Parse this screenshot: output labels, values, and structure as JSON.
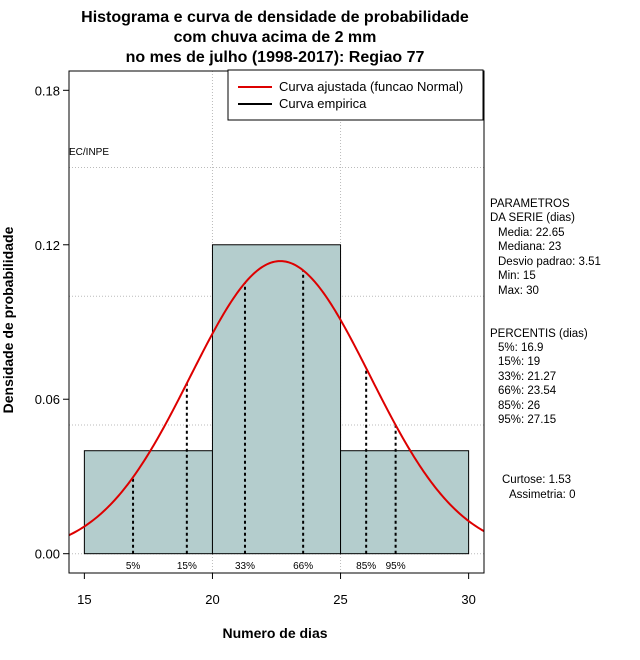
{
  "chart_data": {
    "type": "bar",
    "title_lines": [
      "Histograma e curva de densidade de probabilidade",
      "com chuva acima de 2 mm",
      "no mes de julho (1998-2017): Regiao 77"
    ],
    "xlabel": "Numero de dias",
    "ylabel": "Densidade de probabilidade",
    "xlim": [
      14.4,
      30.6
    ],
    "ylim": [
      -0.0075,
      0.1875
    ],
    "x_ticks": [
      15,
      20,
      25,
      30
    ],
    "y_ticks": [
      0.0,
      0.06,
      0.12,
      0.18
    ],
    "y_tick_labels": [
      "0.00",
      "0.06",
      "0.12",
      "0.18"
    ],
    "grid_x": [
      20,
      25
    ],
    "grid_y": [
      0.05,
      0.1,
      0.15
    ],
    "bins": [
      {
        "start": 15,
        "end": 20,
        "density": 0.04
      },
      {
        "start": 20,
        "end": 25,
        "density": 0.12
      },
      {
        "start": 25,
        "end": 30,
        "density": 0.04
      }
    ],
    "bar_color": "#b4cdcd",
    "normal_curve": {
      "mean": 22.65,
      "sd": 3.51,
      "color": "#dd0000"
    },
    "percentiles": [
      {
        "label": "5%",
        "value": 16.9
      },
      {
        "label": "15%",
        "value": 19
      },
      {
        "label": "33%",
        "value": 21.27
      },
      {
        "label": "66%",
        "value": 23.54
      },
      {
        "label": "85%",
        "value": 26
      },
      {
        "label": "95%",
        "value": 27.15
      }
    ],
    "legend": {
      "position": "top-right",
      "entries": [
        {
          "label": "Curva ajustada (funcao Normal)",
          "color": "#dd0000"
        },
        {
          "label": "Curva empirica",
          "color": "#000000"
        }
      ]
    },
    "credit": "EC/INPE",
    "parametros": {
      "heading": [
        "PARAMETROS",
        "DA SERIE (dias)"
      ],
      "lines": [
        "Media: 22.65",
        "Mediana: 23",
        "Desvio padrao: 3.51",
        "Min: 15",
        "Max: 30"
      ]
    },
    "percentis": {
      "heading": "PERCENTIS (dias)",
      "lines": [
        "5%: 16.9",
        "15%: 19",
        "33%: 21.27",
        "66%: 23.54",
        "85%: 26",
        "95%: 27.15"
      ]
    },
    "stats": [
      "Curtose: 1.53",
      "Assimetria: 0"
    ]
  }
}
